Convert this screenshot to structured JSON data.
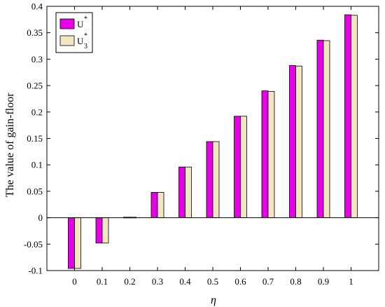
{
  "chart_data": {
    "type": "bar",
    "categories": [
      "0",
      "0.1",
      "0.2",
      "0.3",
      "0.4",
      "0.5",
      "0.6",
      "0.7",
      "0.8",
      "0.9",
      "1"
    ],
    "series": [
      {
        "name_base": "U",
        "name_sup": "*",
        "name_sub": "",
        "color": "#e600e6",
        "values": [
          -0.096,
          -0.048,
          0.001,
          0.048,
          0.096,
          0.144,
          0.192,
          0.24,
          0.288,
          0.336,
          0.384
        ]
      },
      {
        "name_base": "U",
        "name_sup": "*",
        "name_sub": "3",
        "color": "#f2e6c2",
        "values": [
          -0.096,
          -0.048,
          0.001,
          0.048,
          0.096,
          0.144,
          0.192,
          0.239,
          0.287,
          0.335,
          0.383
        ]
      }
    ],
    "xlabel": "η",
    "ylabel": "The value of gain-floor",
    "ylim": [
      -0.1,
      0.4
    ],
    "yticks": [
      "-0.1",
      "-0.05",
      "0",
      "0.05",
      "0.1",
      "0.15",
      "0.2",
      "0.25",
      "0.3",
      "0.35",
      "0.4"
    ],
    "grid": false,
    "legend_position": "top-left"
  }
}
